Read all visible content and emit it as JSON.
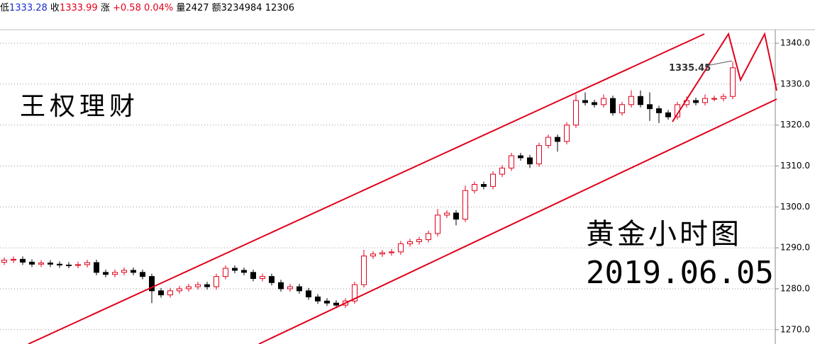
{
  "header": {
    "low_label": "低",
    "low": "1333.28",
    "close_label": "收",
    "close": "1333.99",
    "change_label": "涨",
    "change": "+0.58 0.04%",
    "volume": "量2427",
    "amount": "额3234984",
    "extra": "12306"
  },
  "chart_data": {
    "type": "candlestick",
    "annotations": {
      "brand": "王权理财",
      "caption": "黄金小时图",
      "date": "2019.06.05",
      "price_label": "1335.45"
    },
    "up_color": "#e0001b",
    "down_color": "#000000",
    "ylim": [
      1266.5,
      1343.3
    ],
    "yticks": [
      {
        "value": 1270,
        "label": "1270.0"
      },
      {
        "value": 1280,
        "label": "1280.0"
      },
      {
        "value": 1290,
        "label": "1290.0"
      },
      {
        "value": 1300,
        "label": "1300.0"
      },
      {
        "value": 1310,
        "label": "1310.0"
      },
      {
        "value": 1320,
        "label": "1320.0"
      },
      {
        "value": 1330,
        "label": "1330.0"
      },
      {
        "value": 1340,
        "label": "1340.0"
      }
    ],
    "grid": true,
    "open": [
      1286.5,
      1287,
      1287.2,
      1286.5,
      1286,
      1286.3,
      1286,
      1285.8,
      1285.7,
      1285.9,
      1286.4,
      1284,
      1283.5,
      1284,
      1284.5,
      1284,
      1283,
      1279.5,
      1278.5,
      1279.5,
      1280,
      1280.5,
      1281,
      1280.5,
      1283,
      1285,
      1284.5,
      1284,
      1282.5,
      1283,
      1281.5,
      1280,
      1280.5,
      1279.5,
      1278,
      1277,
      1276.5,
      1276,
      1277,
      1281,
      1288,
      1288.5,
      1288.8,
      1289,
      1291,
      1291.5,
      1292,
      1293.5,
      1298,
      1298.5,
      1297,
      1304,
      1305.5,
      1305,
      1308,
      1309.5,
      1312.5,
      1312,
      1310.5,
      1315,
      1317,
      1316,
      1320,
      1326,
      1325.5,
      1325,
      1326.5,
      1323,
      1325,
      1327,
      1325,
      1324,
      1323,
      1322,
      1325,
      1326,
      1325.5,
      1326.5,
      1326.5,
      1327
    ],
    "high": [
      1287.7,
      1287.9,
      1287.9,
      1287.2,
      1287,
      1287,
      1286.7,
      1286.5,
      1286.6,
      1287.1,
      1287.1,
      1284.7,
      1284.7,
      1285.2,
      1285.2,
      1284.7,
      1283.7,
      1280.2,
      1280.2,
      1280.7,
      1281.2,
      1281.7,
      1281.7,
      1283.7,
      1285.7,
      1285.7,
      1285.2,
      1284.7,
      1283.7,
      1283.7,
      1282.2,
      1281.2,
      1281.2,
      1280.2,
      1278.7,
      1277.7,
      1277.2,
      1277.7,
      1281.7,
      1289.5,
      1289.2,
      1289.5,
      1289.7,
      1291.7,
      1292.2,
      1292.7,
      1294.2,
      1299.5,
      1299.2,
      1299.2,
      1305.2,
      1306.2,
      1306.2,
      1308.7,
      1310.2,
      1313.2,
      1313.2,
      1312.7,
      1315.7,
      1317.7,
      1317.7,
      1320.7,
      1327.5,
      1328,
      1326.2,
      1327.5,
      1327.2,
      1325.7,
      1328.5,
      1328.5,
      1328,
      1324.7,
      1323.7,
      1325.7,
      1327,
      1326.7,
      1327.5,
      1327.2,
      1327.7,
      1335.45
    ],
    "low": [
      1285.8,
      1286.3,
      1285.8,
      1285.3,
      1285.3,
      1285.3,
      1285.1,
      1285,
      1285,
      1285.2,
      1283.3,
      1282.8,
      1282.8,
      1283.3,
      1283.3,
      1282.3,
      1276.5,
      1277.8,
      1277.8,
      1278.8,
      1279.3,
      1279.8,
      1279.8,
      1279.8,
      1282.3,
      1283.8,
      1283.3,
      1281.8,
      1281.8,
      1280.8,
      1279.3,
      1279.3,
      1278.8,
      1277.3,
      1276.3,
      1275.8,
      1275.3,
      1275.3,
      1276.3,
      1280.3,
      1287.3,
      1287.8,
      1288.1,
      1288.3,
      1290.3,
      1290.8,
      1291.3,
      1292.8,
      1297.3,
      1295.5,
      1296.3,
      1303.3,
      1304.3,
      1304.3,
      1307.3,
      1308.8,
      1311.3,
      1309.5,
      1309.8,
      1314.3,
      1313.5,
      1315.3,
      1319.3,
      1324.8,
      1324.3,
      1324.3,
      1322.3,
      1322.3,
      1324.3,
      1324.3,
      1321,
      1320.5,
      1321.3,
      1321.3,
      1324.3,
      1324.8,
      1324.8,
      1325.8,
      1325.8,
      1326.3
    ],
    "close": [
      1287,
      1287.2,
      1286.5,
      1286,
      1286.3,
      1286,
      1285.8,
      1285.7,
      1285.9,
      1286.4,
      1284,
      1283.5,
      1284,
      1284.5,
      1284,
      1283,
      1279.5,
      1278.5,
      1279.5,
      1280,
      1280.5,
      1281,
      1280.5,
      1283,
      1285,
      1284.5,
      1284,
      1282.5,
      1283,
      1281.5,
      1280,
      1280.5,
      1279.5,
      1278,
      1277,
      1276.5,
      1276,
      1277,
      1281,
      1288,
      1288.5,
      1288.8,
      1289,
      1291,
      1291.5,
      1292,
      1293.5,
      1298,
      1298.5,
      1297,
      1304,
      1305.5,
      1305,
      1308,
      1309.5,
      1312.5,
      1312,
      1310.5,
      1315,
      1317,
      1316,
      1320,
      1326,
      1325.5,
      1325,
      1326.5,
      1323,
      1325,
      1327,
      1325,
      1324,
      1323,
      1322,
      1325,
      1326,
      1325.5,
      1326.5,
      1326.5,
      1327,
      1334
    ]
  }
}
